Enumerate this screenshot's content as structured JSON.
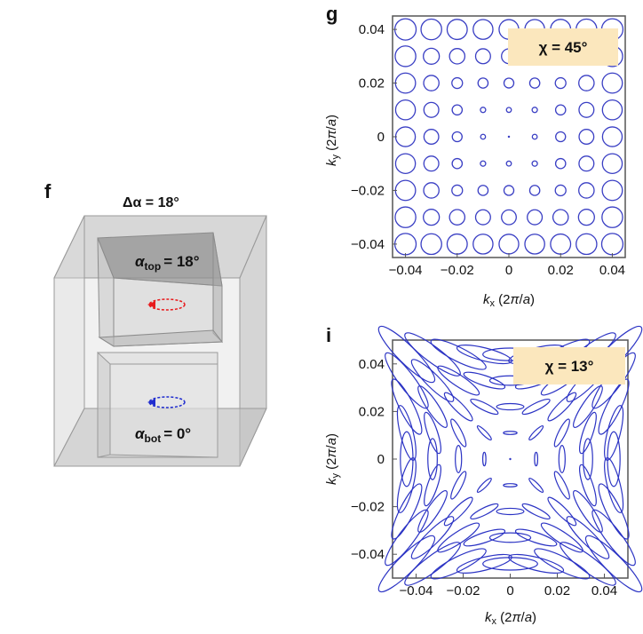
{
  "panels": {
    "f": {
      "label": "f",
      "delta_label": "Δα = 18°",
      "top_label": "α",
      "top_sub": "top",
      "top_value": "= 18°",
      "bot_label": "α",
      "bot_sub": "bot",
      "bot_value": "= 0°",
      "colors": {
        "top_loop": "#e8191b",
        "bot_loop": "#1f2ccf"
      }
    }
  },
  "chart_data": [
    {
      "panel": "g",
      "type": "scatter",
      "title": "g",
      "annotation": "χ = 45°",
      "xlabel": "k_x (2π/a)",
      "ylabel": "k_y (2π/a)",
      "xlim": [
        -0.045,
        0.045
      ],
      "ylim": [
        -0.045,
        0.045
      ],
      "xticks": [
        -0.04,
        -0.02,
        0,
        0.02,
        0.04
      ],
      "yticks": [
        -0.04,
        -0.02,
        0,
        0.02,
        0.04
      ],
      "xtick_labels": [
        "−0.04",
        "−0.02",
        "0",
        "0.02",
        "0.04"
      ],
      "ytick_labels": [
        "−0.04",
        "−0.02",
        "0",
        "0.02",
        "0.04"
      ],
      "grid_values": [
        -0.04,
        -0.03,
        -0.02,
        -0.01,
        0,
        0.01,
        0.02,
        0.03,
        0.04
      ],
      "marker": "polarization ellipse (circular)",
      "ellipse_scale": 0.095,
      "color": "#3a3fc4",
      "annotation_bg": "#fbe7bd"
    },
    {
      "panel": "i",
      "type": "scatter",
      "title": "i",
      "annotation": "χ = 13°",
      "xlabel": "k_x (2π/a)",
      "ylabel": "k_y (2π/a)",
      "xlim": [
        -0.05,
        0.05
      ],
      "ylim": [
        -0.05,
        0.05
      ],
      "xticks": [
        -0.04,
        -0.02,
        0,
        0.02,
        0.04
      ],
      "yticks": [
        -0.04,
        -0.02,
        0,
        0.02,
        0.04
      ],
      "xtick_labels": [
        "−0.04",
        "−0.02",
        "0",
        "0.02",
        "0.04"
      ],
      "ytick_labels": [
        "−0.04",
        "−0.02",
        "0",
        "0.02",
        "0.04"
      ],
      "grid_values": [
        -0.044,
        -0.033,
        -0.022,
        -0.011,
        0,
        0.011,
        0.022,
        0.033,
        0.044
      ],
      "marker": "polarization ellipse (azimuthal, elongated)",
      "ellipse_scale": 0.165,
      "axis_ratio": 0.23,
      "color": "#2b33c4",
      "annotation_bg": "#fbe7bd"
    }
  ]
}
